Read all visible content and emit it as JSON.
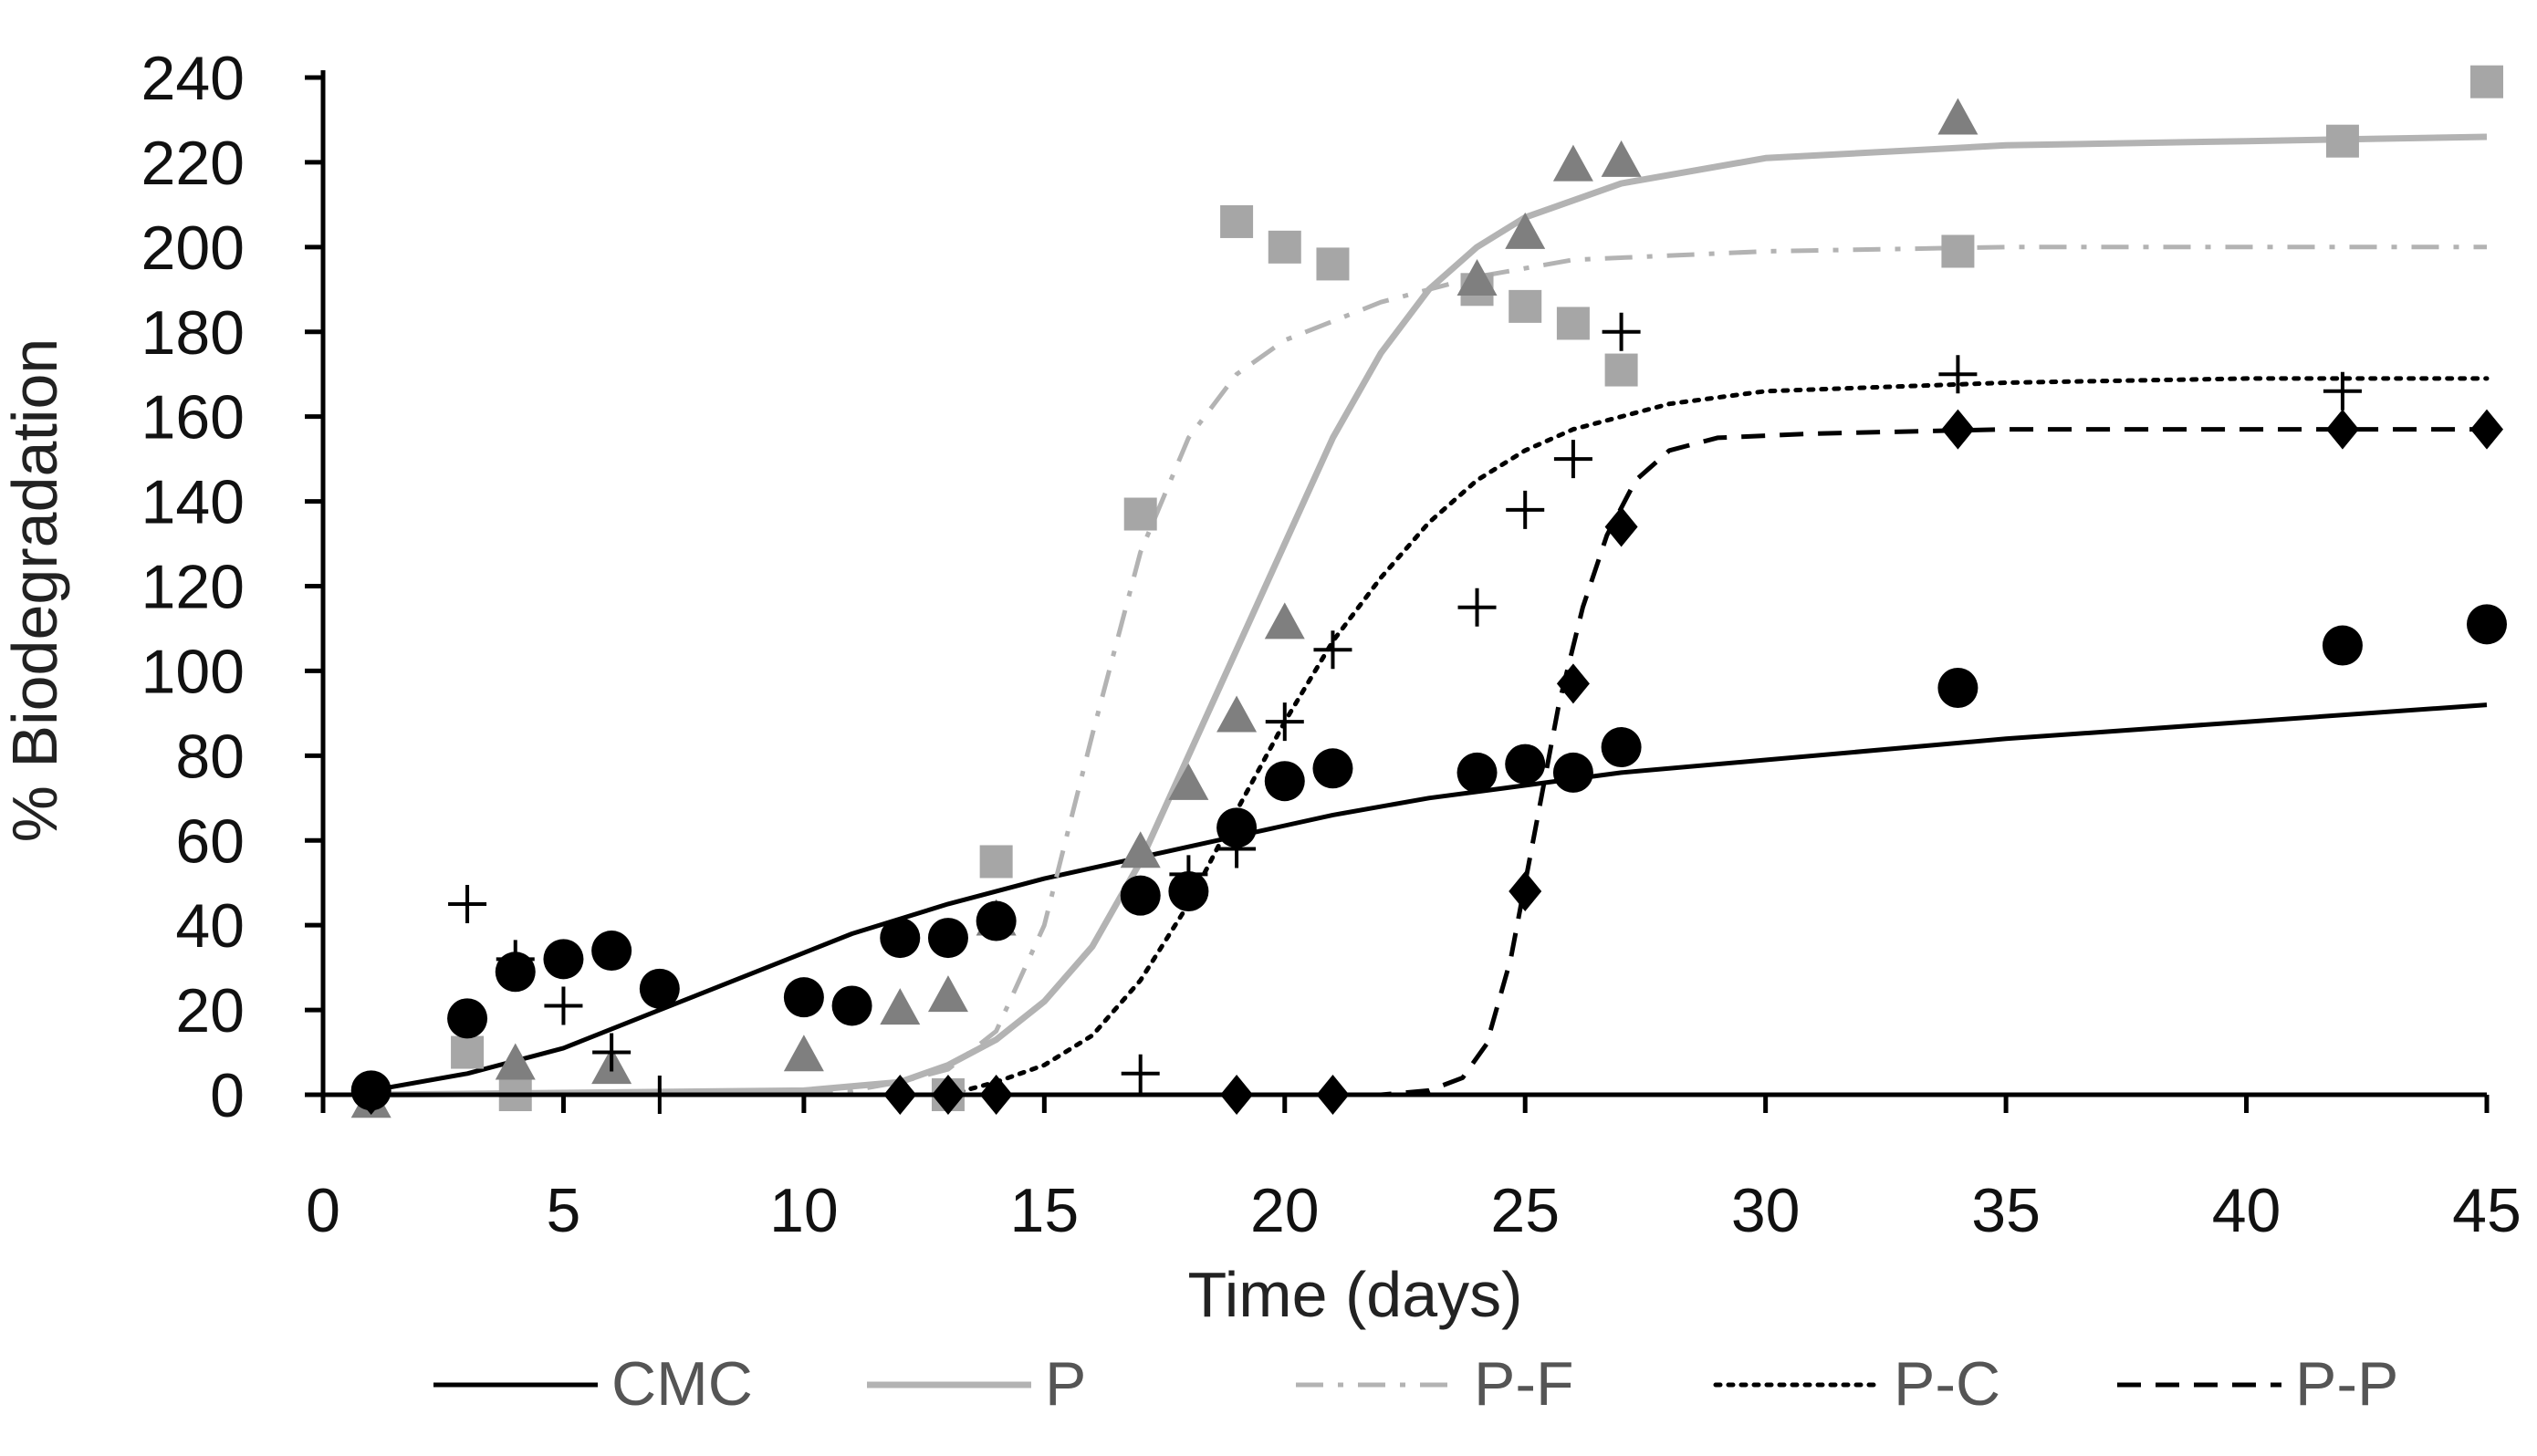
{
  "chart_data": {
    "type": "scatter",
    "title": "",
    "xlabel": "Time (days)",
    "ylabel": "% Biodegradation",
    "xlim": [
      0,
      45
    ],
    "ylim": [
      0,
      240
    ],
    "x_ticks": [
      0,
      5,
      10,
      15,
      20,
      25,
      30,
      35,
      40,
      45
    ],
    "y_ticks": [
      0,
      20,
      40,
      60,
      80,
      100,
      120,
      140,
      160,
      180,
      200,
      220,
      240
    ],
    "grid": false,
    "legend_position": "bottom",
    "series": [
      {
        "name": "CMC",
        "line_style": "solid",
        "line_color": "#000000",
        "marker": "circle",
        "marker_color": "#000000",
        "points": [
          [
            1,
            1
          ],
          [
            3,
            18
          ],
          [
            4,
            29
          ],
          [
            5,
            32
          ],
          [
            6,
            34
          ],
          [
            7,
            25
          ],
          [
            10,
            23
          ],
          [
            11,
            21
          ],
          [
            12,
            37
          ],
          [
            13,
            37
          ],
          [
            14,
            41
          ],
          [
            17,
            47
          ],
          [
            18,
            48
          ],
          [
            19,
            63
          ],
          [
            20,
            74
          ],
          [
            21,
            77
          ],
          [
            24,
            76
          ],
          [
            25,
            78
          ],
          [
            26,
            76
          ],
          [
            27,
            82
          ],
          [
            34,
            96
          ],
          [
            42,
            106
          ],
          [
            45,
            111
          ]
        ],
        "fit": [
          [
            1,
            1
          ],
          [
            3,
            5
          ],
          [
            5,
            11
          ],
          [
            7,
            20
          ],
          [
            9,
            29
          ],
          [
            11,
            38
          ],
          [
            13,
            45
          ],
          [
            15,
            51
          ],
          [
            17,
            56
          ],
          [
            19,
            61
          ],
          [
            21,
            66
          ],
          [
            23,
            70
          ],
          [
            25,
            73
          ],
          [
            27,
            76
          ],
          [
            30,
            79
          ],
          [
            35,
            84
          ],
          [
            40,
            88
          ],
          [
            45,
            92
          ]
        ]
      },
      {
        "name": "P",
        "line_style": "solid",
        "line_color": "#b3b3b3",
        "marker": "triangle",
        "marker_color": "#7f7f7f",
        "points": [
          [
            1,
            -2
          ],
          [
            4,
            7
          ],
          [
            6,
            6
          ],
          [
            10,
            9
          ],
          [
            12,
            20
          ],
          [
            13,
            23
          ],
          [
            14,
            41
          ],
          [
            17,
            57
          ],
          [
            18,
            73
          ],
          [
            19,
            89
          ],
          [
            20,
            111
          ],
          [
            24,
            192
          ],
          [
            25,
            203
          ],
          [
            26,
            219
          ],
          [
            27,
            220
          ],
          [
            34,
            230
          ]
        ],
        "fit": [
          [
            1,
            0
          ],
          [
            10,
            1
          ],
          [
            12,
            3
          ],
          [
            13,
            7
          ],
          [
            14,
            13
          ],
          [
            15,
            22
          ],
          [
            16,
            35
          ],
          [
            17,
            55
          ],
          [
            18,
            80
          ],
          [
            19,
            105
          ],
          [
            20,
            130
          ],
          [
            21,
            155
          ],
          [
            22,
            175
          ],
          [
            23,
            190
          ],
          [
            24,
            200
          ],
          [
            25,
            207
          ],
          [
            27,
            215
          ],
          [
            30,
            221
          ],
          [
            35,
            224
          ],
          [
            40,
            225
          ],
          [
            45,
            226
          ]
        ]
      },
      {
        "name": "P-F",
        "line_style": "dash-dot",
        "line_color": "#b3b3b3",
        "marker": "square",
        "marker_color": "#a6a6a6",
        "points": [
          [
            3,
            10
          ],
          [
            4,
            0
          ],
          [
            13,
            0
          ],
          [
            14,
            55
          ],
          [
            17,
            137
          ],
          [
            19,
            206
          ],
          [
            20,
            200
          ],
          [
            21,
            196
          ],
          [
            24,
            190
          ],
          [
            25,
            186
          ],
          [
            26,
            182
          ],
          [
            27,
            171
          ],
          [
            34,
            199
          ],
          [
            42,
            225
          ],
          [
            45,
            239
          ]
        ],
        "fit": [
          [
            1,
            0
          ],
          [
            11,
            1
          ],
          [
            12,
            3
          ],
          [
            13,
            6
          ],
          [
            14,
            15
          ],
          [
            15,
            40
          ],
          [
            16,
            85
          ],
          [
            17,
            128
          ],
          [
            18,
            155
          ],
          [
            19,
            170
          ],
          [
            20,
            178
          ],
          [
            22,
            187
          ],
          [
            24,
            193
          ],
          [
            26,
            197
          ],
          [
            30,
            199
          ],
          [
            35,
            200
          ],
          [
            40,
            200
          ],
          [
            45,
            200
          ]
        ]
      },
      {
        "name": "P-C",
        "line_style": "dotted",
        "line_color": "#000000",
        "marker": "plus",
        "marker_color": "#000000",
        "points": [
          [
            3,
            45
          ],
          [
            4,
            32
          ],
          [
            5,
            21
          ],
          [
            6,
            10
          ],
          [
            7,
            0
          ],
          [
            17,
            5
          ],
          [
            18,
            52
          ],
          [
            19,
            58
          ],
          [
            20,
            88
          ],
          [
            21,
            105
          ],
          [
            24,
            115
          ],
          [
            25,
            138
          ],
          [
            26,
            150
          ],
          [
            27,
            180
          ],
          [
            34,
            170
          ],
          [
            42,
            166
          ]
        ],
        "fit": [
          [
            1,
            0
          ],
          [
            13,
            0
          ],
          [
            14,
            3
          ],
          [
            15,
            7
          ],
          [
            16,
            14
          ],
          [
            17,
            27
          ],
          [
            18,
            45
          ],
          [
            19,
            67
          ],
          [
            20,
            88
          ],
          [
            21,
            107
          ],
          [
            22,
            122
          ],
          [
            23,
            135
          ],
          [
            24,
            145
          ],
          [
            25,
            152
          ],
          [
            26,
            157
          ],
          [
            28,
            163
          ],
          [
            30,
            166
          ],
          [
            35,
            168
          ],
          [
            40,
            169
          ],
          [
            45,
            169
          ]
        ]
      },
      {
        "name": "P-P",
        "line_style": "dashed",
        "line_color": "#000000",
        "marker": "diamond",
        "marker_color": "#000000",
        "points": [
          [
            1,
            0
          ],
          [
            12,
            0
          ],
          [
            13,
            0
          ],
          [
            14,
            0
          ],
          [
            19,
            0
          ],
          [
            21,
            0
          ],
          [
            25,
            48
          ],
          [
            26,
            97
          ],
          [
            27,
            134
          ],
          [
            34,
            157
          ],
          [
            42,
            157
          ],
          [
            45,
            157
          ]
        ],
        "fit": [
          [
            1,
            0
          ],
          [
            22,
            0
          ],
          [
            23,
            1
          ],
          [
            23.7,
            4
          ],
          [
            24.2,
            12
          ],
          [
            24.7,
            32
          ],
          [
            25.2,
            62
          ],
          [
            25.7,
            92
          ],
          [
            26.2,
            115
          ],
          [
            26.7,
            132
          ],
          [
            27.3,
            145
          ],
          [
            28,
            152
          ],
          [
            29,
            155
          ],
          [
            31,
            156
          ],
          [
            35,
            157
          ],
          [
            45,
            157
          ]
        ]
      }
    ]
  }
}
